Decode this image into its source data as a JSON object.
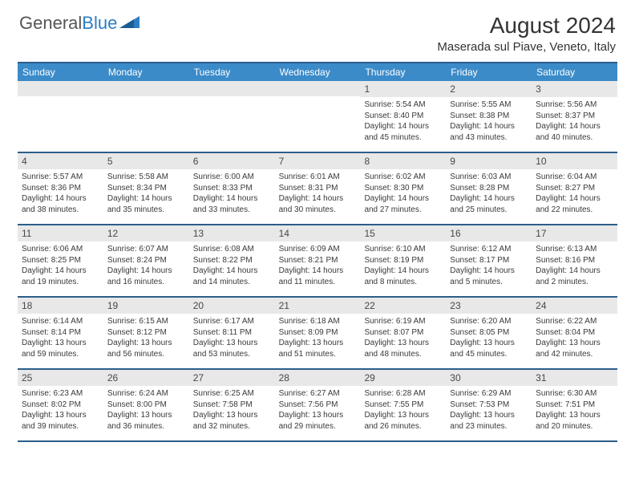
{
  "brand": {
    "text1": "General",
    "text2": "Blue"
  },
  "title": "August 2024",
  "location": "Maserada sul Piave, Veneto, Italy",
  "colors": {
    "header_bg": "#3b8bc9",
    "border": "#2c5e8a",
    "daynum_bg": "#e8e8e8",
    "text": "#333333",
    "logo_gray": "#555555",
    "logo_blue": "#2d7dc3"
  },
  "weekdays": [
    "Sunday",
    "Monday",
    "Tuesday",
    "Wednesday",
    "Thursday",
    "Friday",
    "Saturday"
  ],
  "weeks": [
    [
      {
        "n": "",
        "sunrise": "",
        "sunset": "",
        "daylight": ""
      },
      {
        "n": "",
        "sunrise": "",
        "sunset": "",
        "daylight": ""
      },
      {
        "n": "",
        "sunrise": "",
        "sunset": "",
        "daylight": ""
      },
      {
        "n": "",
        "sunrise": "",
        "sunset": "",
        "daylight": ""
      },
      {
        "n": "1",
        "sunrise": "Sunrise: 5:54 AM",
        "sunset": "Sunset: 8:40 PM",
        "daylight": "Daylight: 14 hours and 45 minutes."
      },
      {
        "n": "2",
        "sunrise": "Sunrise: 5:55 AM",
        "sunset": "Sunset: 8:38 PM",
        "daylight": "Daylight: 14 hours and 43 minutes."
      },
      {
        "n": "3",
        "sunrise": "Sunrise: 5:56 AM",
        "sunset": "Sunset: 8:37 PM",
        "daylight": "Daylight: 14 hours and 40 minutes."
      }
    ],
    [
      {
        "n": "4",
        "sunrise": "Sunrise: 5:57 AM",
        "sunset": "Sunset: 8:36 PM",
        "daylight": "Daylight: 14 hours and 38 minutes."
      },
      {
        "n": "5",
        "sunrise": "Sunrise: 5:58 AM",
        "sunset": "Sunset: 8:34 PM",
        "daylight": "Daylight: 14 hours and 35 minutes."
      },
      {
        "n": "6",
        "sunrise": "Sunrise: 6:00 AM",
        "sunset": "Sunset: 8:33 PM",
        "daylight": "Daylight: 14 hours and 33 minutes."
      },
      {
        "n": "7",
        "sunrise": "Sunrise: 6:01 AM",
        "sunset": "Sunset: 8:31 PM",
        "daylight": "Daylight: 14 hours and 30 minutes."
      },
      {
        "n": "8",
        "sunrise": "Sunrise: 6:02 AM",
        "sunset": "Sunset: 8:30 PM",
        "daylight": "Daylight: 14 hours and 27 minutes."
      },
      {
        "n": "9",
        "sunrise": "Sunrise: 6:03 AM",
        "sunset": "Sunset: 8:28 PM",
        "daylight": "Daylight: 14 hours and 25 minutes."
      },
      {
        "n": "10",
        "sunrise": "Sunrise: 6:04 AM",
        "sunset": "Sunset: 8:27 PM",
        "daylight": "Daylight: 14 hours and 22 minutes."
      }
    ],
    [
      {
        "n": "11",
        "sunrise": "Sunrise: 6:06 AM",
        "sunset": "Sunset: 8:25 PM",
        "daylight": "Daylight: 14 hours and 19 minutes."
      },
      {
        "n": "12",
        "sunrise": "Sunrise: 6:07 AM",
        "sunset": "Sunset: 8:24 PM",
        "daylight": "Daylight: 14 hours and 16 minutes."
      },
      {
        "n": "13",
        "sunrise": "Sunrise: 6:08 AM",
        "sunset": "Sunset: 8:22 PM",
        "daylight": "Daylight: 14 hours and 14 minutes."
      },
      {
        "n": "14",
        "sunrise": "Sunrise: 6:09 AM",
        "sunset": "Sunset: 8:21 PM",
        "daylight": "Daylight: 14 hours and 11 minutes."
      },
      {
        "n": "15",
        "sunrise": "Sunrise: 6:10 AM",
        "sunset": "Sunset: 8:19 PM",
        "daylight": "Daylight: 14 hours and 8 minutes."
      },
      {
        "n": "16",
        "sunrise": "Sunrise: 6:12 AM",
        "sunset": "Sunset: 8:17 PM",
        "daylight": "Daylight: 14 hours and 5 minutes."
      },
      {
        "n": "17",
        "sunrise": "Sunrise: 6:13 AM",
        "sunset": "Sunset: 8:16 PM",
        "daylight": "Daylight: 14 hours and 2 minutes."
      }
    ],
    [
      {
        "n": "18",
        "sunrise": "Sunrise: 6:14 AM",
        "sunset": "Sunset: 8:14 PM",
        "daylight": "Daylight: 13 hours and 59 minutes."
      },
      {
        "n": "19",
        "sunrise": "Sunrise: 6:15 AM",
        "sunset": "Sunset: 8:12 PM",
        "daylight": "Daylight: 13 hours and 56 minutes."
      },
      {
        "n": "20",
        "sunrise": "Sunrise: 6:17 AM",
        "sunset": "Sunset: 8:11 PM",
        "daylight": "Daylight: 13 hours and 53 minutes."
      },
      {
        "n": "21",
        "sunrise": "Sunrise: 6:18 AM",
        "sunset": "Sunset: 8:09 PM",
        "daylight": "Daylight: 13 hours and 51 minutes."
      },
      {
        "n": "22",
        "sunrise": "Sunrise: 6:19 AM",
        "sunset": "Sunset: 8:07 PM",
        "daylight": "Daylight: 13 hours and 48 minutes."
      },
      {
        "n": "23",
        "sunrise": "Sunrise: 6:20 AM",
        "sunset": "Sunset: 8:05 PM",
        "daylight": "Daylight: 13 hours and 45 minutes."
      },
      {
        "n": "24",
        "sunrise": "Sunrise: 6:22 AM",
        "sunset": "Sunset: 8:04 PM",
        "daylight": "Daylight: 13 hours and 42 minutes."
      }
    ],
    [
      {
        "n": "25",
        "sunrise": "Sunrise: 6:23 AM",
        "sunset": "Sunset: 8:02 PM",
        "daylight": "Daylight: 13 hours and 39 minutes."
      },
      {
        "n": "26",
        "sunrise": "Sunrise: 6:24 AM",
        "sunset": "Sunset: 8:00 PM",
        "daylight": "Daylight: 13 hours and 36 minutes."
      },
      {
        "n": "27",
        "sunrise": "Sunrise: 6:25 AM",
        "sunset": "Sunset: 7:58 PM",
        "daylight": "Daylight: 13 hours and 32 minutes."
      },
      {
        "n": "28",
        "sunrise": "Sunrise: 6:27 AM",
        "sunset": "Sunset: 7:56 PM",
        "daylight": "Daylight: 13 hours and 29 minutes."
      },
      {
        "n": "29",
        "sunrise": "Sunrise: 6:28 AM",
        "sunset": "Sunset: 7:55 PM",
        "daylight": "Daylight: 13 hours and 26 minutes."
      },
      {
        "n": "30",
        "sunrise": "Sunrise: 6:29 AM",
        "sunset": "Sunset: 7:53 PM",
        "daylight": "Daylight: 13 hours and 23 minutes."
      },
      {
        "n": "31",
        "sunrise": "Sunrise: 6:30 AM",
        "sunset": "Sunset: 7:51 PM",
        "daylight": "Daylight: 13 hours and 20 minutes."
      }
    ]
  ]
}
